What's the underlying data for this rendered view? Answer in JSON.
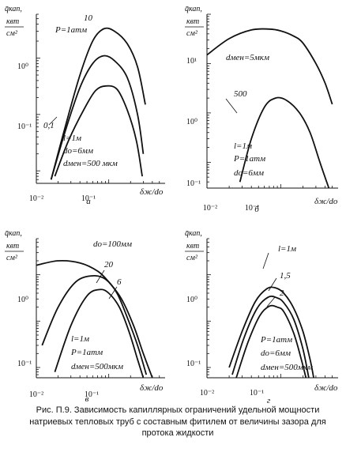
{
  "caption": "Рис. П.9. Зависимость капиллярных ограничений удельной мощности натриевых тепловых труб с составным фитилем от величины зазора для протока жидкости",
  "chart_data": [
    {
      "type": "line",
      "panel_letter": "а",
      "y_axis_label": [
        "q̄кап,",
        "квт",
        "см²"
      ],
      "x_axis_label": "δж/dо",
      "x_tick_labels": [
        "10⁻²",
        "10⁻¹"
      ],
      "y_tick_labels": [
        "10⁰",
        "10⁻¹"
      ],
      "x_scale": "log",
      "y_scale": "log",
      "xlim": [
        0.01,
        0.6
      ],
      "ylim": [
        0.06,
        60
      ],
      "annotations": [
        "P=1атм",
        "l=1м",
        "dо=6мм",
        "dмен=500 мкм"
      ],
      "series": [
        {
          "name": "10",
          "x": [
            0.016,
            0.025,
            0.04,
            0.06,
            0.085,
            0.12,
            0.18,
            0.25,
            0.32
          ],
          "y": [
            0.07,
            0.6,
            5,
            20,
            33,
            30,
            18,
            7,
            1.5
          ]
        },
        {
          "name": "",
          "x": [
            0.016,
            0.025,
            0.04,
            0.06,
            0.085,
            0.12,
            0.18,
            0.25,
            0.3
          ],
          "y": [
            0.07,
            0.5,
            3,
            8,
            11,
            9,
            4.5,
            1,
            0.2
          ]
        },
        {
          "name": "0,1",
          "x": [
            0.018,
            0.028,
            0.045,
            0.065,
            0.09,
            0.13,
            0.18,
            0.24,
            0.29
          ],
          "y": [
            0.08,
            0.35,
            1.2,
            2.6,
            3.2,
            2.8,
            1.2,
            0.35,
            0.08
          ]
        }
      ]
    },
    {
      "type": "line",
      "panel_letter": "б",
      "y_axis_label": [
        "q̄кап,",
        "квт",
        "см²"
      ],
      "x_axis_label": "δж/dо",
      "x_tick_labels": [
        "10⁻²",
        "10⁻¹"
      ],
      "y_tick_labels": [
        "10¹",
        "10⁰",
        "10⁻¹"
      ],
      "x_scale": "log",
      "y_scale": "log",
      "xlim": [
        0.01,
        0.6
      ],
      "ylim": [
        0.03,
        100
      ],
      "annotations": [
        "l=1м",
        "P=1атм",
        "dо=6мм"
      ],
      "series": [
        {
          "name": "dмен=5мкм",
          "x": [
            0.01,
            0.02,
            0.04,
            0.07,
            0.1,
            0.15,
            0.2,
            0.3,
            0.4,
            0.5
          ],
          "y": [
            15,
            32,
            48,
            50,
            46,
            36,
            26,
            10,
            4,
            1.5
          ]
        },
        {
          "name": "500",
          "x": [
            0.028,
            0.04,
            0.06,
            0.085,
            0.12,
            0.18,
            0.25,
            0.34,
            0.45
          ],
          "y": [
            0.04,
            0.3,
            1.3,
            2.0,
            1.8,
            1.0,
            0.4,
            0.1,
            0.03
          ]
        }
      ]
    },
    {
      "type": "line",
      "panel_letter": "в",
      "y_axis_label": [
        "q̄кап,",
        "квт",
        "см²"
      ],
      "x_axis_label": "δж/dо",
      "x_tick_labels": [
        "10⁻²",
        "10⁻¹"
      ],
      "y_tick_labels": [
        "10⁰",
        "10⁻¹"
      ],
      "x_scale": "log",
      "y_scale": "log",
      "xlim": [
        0.01,
        0.6
      ],
      "ylim": [
        0.06,
        60
      ],
      "annotations": [
        "l=1м",
        "P=1атм",
        "dмен=500мкм"
      ],
      "series": [
        {
          "name": "dо=100мм",
          "x": [
            0.01,
            0.02,
            0.04,
            0.07,
            0.1,
            0.15,
            0.22,
            0.3,
            0.4
          ],
          "y": [
            16,
            20,
            18,
            12,
            7,
            3,
            0.8,
            0.2,
            0.06
          ]
        },
        {
          "name": "20",
          "x": [
            0.012,
            0.02,
            0.035,
            0.06,
            0.09,
            0.13,
            0.18,
            0.25,
            0.33
          ],
          "y": [
            0.3,
            2,
            7,
            9.5,
            8,
            4,
            1.2,
            0.3,
            0.07
          ]
        },
        {
          "name": "6",
          "x": [
            0.018,
            0.03,
            0.05,
            0.075,
            0.1,
            0.14,
            0.19,
            0.25,
            0.3
          ],
          "y": [
            0.08,
            0.8,
            3.5,
            4.8,
            4,
            2,
            0.6,
            0.15,
            0.06
          ]
        }
      ]
    },
    {
      "type": "line",
      "panel_letter": "г",
      "y_axis_label": [
        "q̄кап,",
        "квт",
        "см²"
      ],
      "x_axis_label": "δж/dо",
      "x_tick_labels": [
        "10⁻²",
        "10⁻¹"
      ],
      "y_tick_labels": [
        "10⁰",
        "10⁻¹"
      ],
      "x_scale": "log",
      "y_scale": "log",
      "xlim": [
        0.01,
        0.6
      ],
      "ylim": [
        0.06,
        60
      ],
      "annotations": [
        "P=1атм",
        "dо=6мм",
        "dмен=500мкм"
      ],
      "series": [
        {
          "name": "l=1м",
          "x": [
            0.02,
            0.03,
            0.045,
            0.065,
            0.085,
            0.11,
            0.15,
            0.2,
            0.25,
            0.28
          ],
          "y": [
            0.1,
            0.6,
            2.6,
            5.0,
            5.2,
            4.0,
            1.9,
            0.6,
            0.15,
            0.06
          ]
        },
        {
          "name": "1,5",
          "x": [
            0.022,
            0.032,
            0.048,
            0.068,
            0.088,
            0.11,
            0.15,
            0.2,
            0.24
          ],
          "y": [
            0.07,
            0.45,
            1.9,
            3.3,
            3.2,
            2.5,
            1.1,
            0.25,
            0.06
          ]
        },
        {
          "name": "2",
          "x": [
            0.025,
            0.036,
            0.052,
            0.07,
            0.09,
            0.11,
            0.15,
            0.19,
            0.22
          ],
          "y": [
            0.06,
            0.35,
            1.3,
            2.1,
            2.0,
            1.6,
            0.55,
            0.15,
            0.06
          ]
        }
      ]
    }
  ]
}
